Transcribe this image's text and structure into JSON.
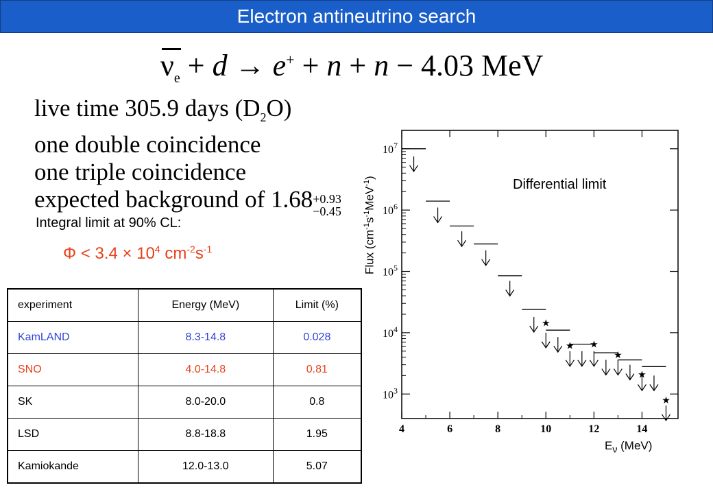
{
  "header": {
    "title": "Electron antineutrino search"
  },
  "reaction": {
    "nu": "ν",
    "nu_sub": "e",
    "plus1": "+",
    "d": "d",
    "arrow": "→",
    "e": "e",
    "e_sup": "+",
    "plus2": "+",
    "n1": "n",
    "plus3": "+",
    "n2": "n",
    "energy": "− 4.03 MeV"
  },
  "facts": {
    "live_prefix": "live time 305.9 days (D",
    "live_sub": "2",
    "live_suffix": "O)",
    "double": "one double coincidence",
    "triple": "one triple coincidence",
    "bg_prefix": "expected background of 1.68",
    "bg_plus": "+0.93",
    "bg_minus": "−0.45"
  },
  "integral": {
    "label": "Integral limit at 90% CL:",
    "phi_prefix": "Φ < 3.4 × 10",
    "phi_exp": "4",
    "phi_unit": " cm",
    "phi_cm_exp": "-2",
    "phi_s": "s",
    "phi_s_exp": "-1"
  },
  "table": {
    "headers": [
      "experiment",
      "Energy (MeV)",
      "Limit (%)"
    ],
    "rows": [
      [
        "KamLAND",
        "8.3-14.8",
        "0.028"
      ],
      [
        "SNO",
        "4.0-14.8",
        "0.81"
      ],
      [
        "SK",
        "8.0-20.0",
        "0.8"
      ],
      [
        "LSD",
        "8.8-18.8",
        "1.95"
      ],
      [
        "Kamiokande",
        "12.0-13.0",
        "5.07"
      ]
    ]
  },
  "chart_data": {
    "type": "scatter",
    "annotation": "Differential limit",
    "ylabel_base": "Flux (cm",
    "ylabel_e1": "-1",
    "ylabel_mid": "s",
    "ylabel_e2": "-1",
    "ylabel_mid2": "MeV",
    "ylabel_e3": "-1",
    "ylabel_close": ")",
    "xlabel": "E",
    "xlabel_sub": "ν",
    "xlabel_unit": "  (MeV)",
    "xlim": [
      4,
      15.5
    ],
    "ylim_log10": [
      2.6,
      7.3
    ],
    "yscale": "log",
    "x_ticks": [
      "4",
      "6",
      "8",
      "10",
      "12",
      "14"
    ],
    "y_tick_exponents": [
      "3",
      "4",
      "5",
      "6",
      "7"
    ],
    "y_tick_base": "10",
    "sno_limits": [
      {
        "x_lo": 4.0,
        "x_hi": 5.0,
        "y": 10000000.0
      },
      {
        "x_lo": 5.0,
        "x_hi": 6.0,
        "y": 1400000.0
      },
      {
        "x_lo": 6.0,
        "x_hi": 7.0,
        "y": 550000.0
      },
      {
        "x_lo": 7.0,
        "x_hi": 8.0,
        "y": 280000.0
      },
      {
        "x_lo": 8.0,
        "x_hi": 9.0,
        "y": 85000.0
      },
      {
        "x_lo": 9.0,
        "x_hi": 10.0,
        "y": 24000.0
      },
      {
        "x_lo": 10.0,
        "x_hi": 11.0,
        "y": 11000.0
      },
      {
        "x_lo": 11.0,
        "x_hi": 12.0,
        "y": 6500.0
      },
      {
        "x_lo": 12.0,
        "x_hi": 13.0,
        "y": 4700.0
      },
      {
        "x_lo": 13.0,
        "x_hi": 14.0,
        "y": 3600.0
      },
      {
        "x_lo": 14.0,
        "x_hi": 15.0,
        "y": 2800.0
      }
    ],
    "arrows": [
      {
        "x": 4.5,
        "y": 7500000.0
      },
      {
        "x": 5.5,
        "y": 1100000.0
      },
      {
        "x": 6.5,
        "y": 450000.0
      },
      {
        "x": 7.5,
        "y": 220000.0
      },
      {
        "x": 8.5,
        "y": 70000.0
      },
      {
        "x": 9.5,
        "y": 18000.0
      },
      {
        "x": 10.0,
        "y": 10000.0
      },
      {
        "x": 10.5,
        "y": 8500.0
      },
      {
        "x": 11.0,
        "y": 5000.0
      },
      {
        "x": 11.5,
        "y": 5000.0
      },
      {
        "x": 12.0,
        "y": 5000.0
      },
      {
        "x": 12.5,
        "y": 3600.0
      },
      {
        "x": 13.0,
        "y": 3600.0
      },
      {
        "x": 13.5,
        "y": 3000.0
      },
      {
        "x": 14.0,
        "y": 2000.0
      },
      {
        "x": 14.5,
        "y": 2000.0
      },
      {
        "x": 15.0,
        "y": 650.0
      }
    ],
    "stars": [
      {
        "x": 10.0,
        "y": 14500.0
      },
      {
        "x": 11.0,
        "y": 6200.0
      },
      {
        "x": 12.0,
        "y": 6500.0
      },
      {
        "x": 13.0,
        "y": 4400.0
      },
      {
        "x": 14.0,
        "y": 2100.0
      },
      {
        "x": 15.0,
        "y": 800.0
      }
    ]
  }
}
